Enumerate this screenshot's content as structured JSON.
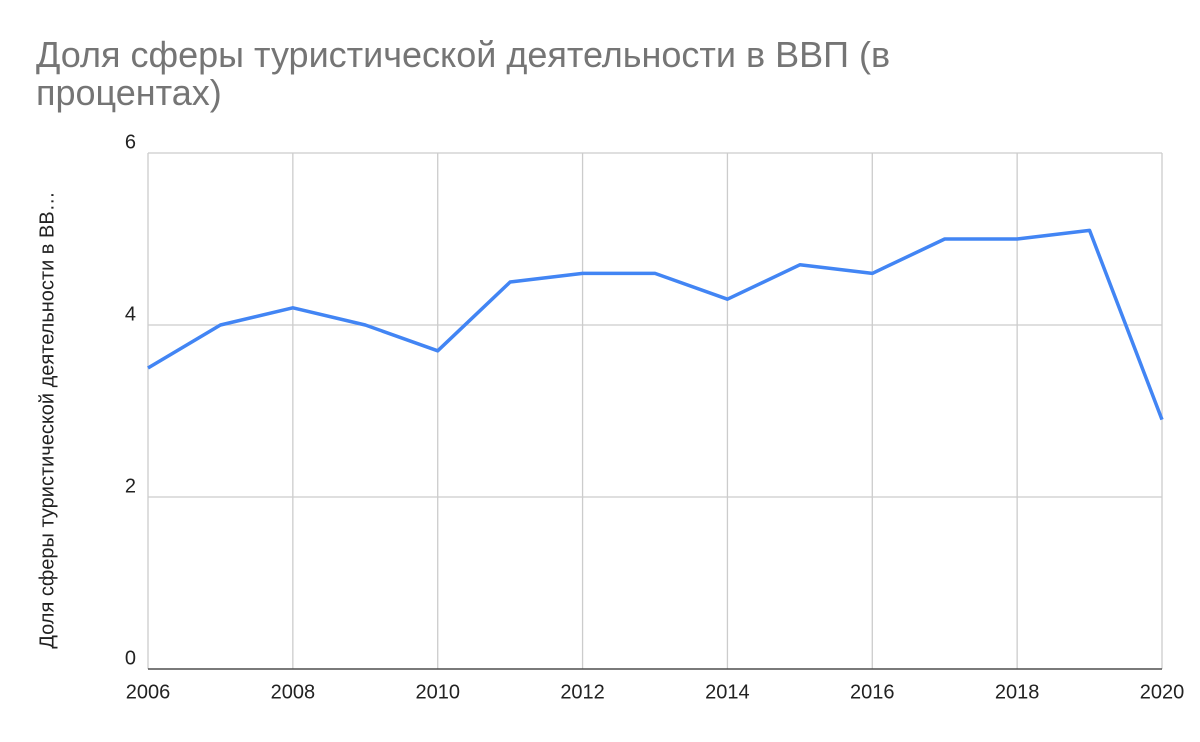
{
  "chart_data": {
    "type": "line",
    "title": "Доля сферы туристической деятельности в ВВП (в процентах)",
    "y_label": "Доля сферы туристической деятельности в ВВ…",
    "x": [
      2006,
      2007,
      2008,
      2009,
      2010,
      2011,
      2012,
      2013,
      2014,
      2015,
      2016,
      2017,
      2018,
      2019,
      2020
    ],
    "series": [
      {
        "name": "Доля сферы туристической деятельности в ВВП (в процентах)",
        "color": "#4285f4",
        "values": [
          3.5,
          4.0,
          4.2,
          4.0,
          3.7,
          4.5,
          4.6,
          4.6,
          4.3,
          4.7,
          4.6,
          5.0,
          5.0,
          5.1,
          2.9
        ]
      }
    ],
    "xlim": [
      2006,
      2020
    ],
    "xticks": [
      2006,
      2008,
      2010,
      2012,
      2014,
      2016,
      2018,
      2020
    ],
    "ylim": [
      0,
      6
    ],
    "yticks": [
      0,
      2,
      4,
      6
    ],
    "grid": true
  }
}
